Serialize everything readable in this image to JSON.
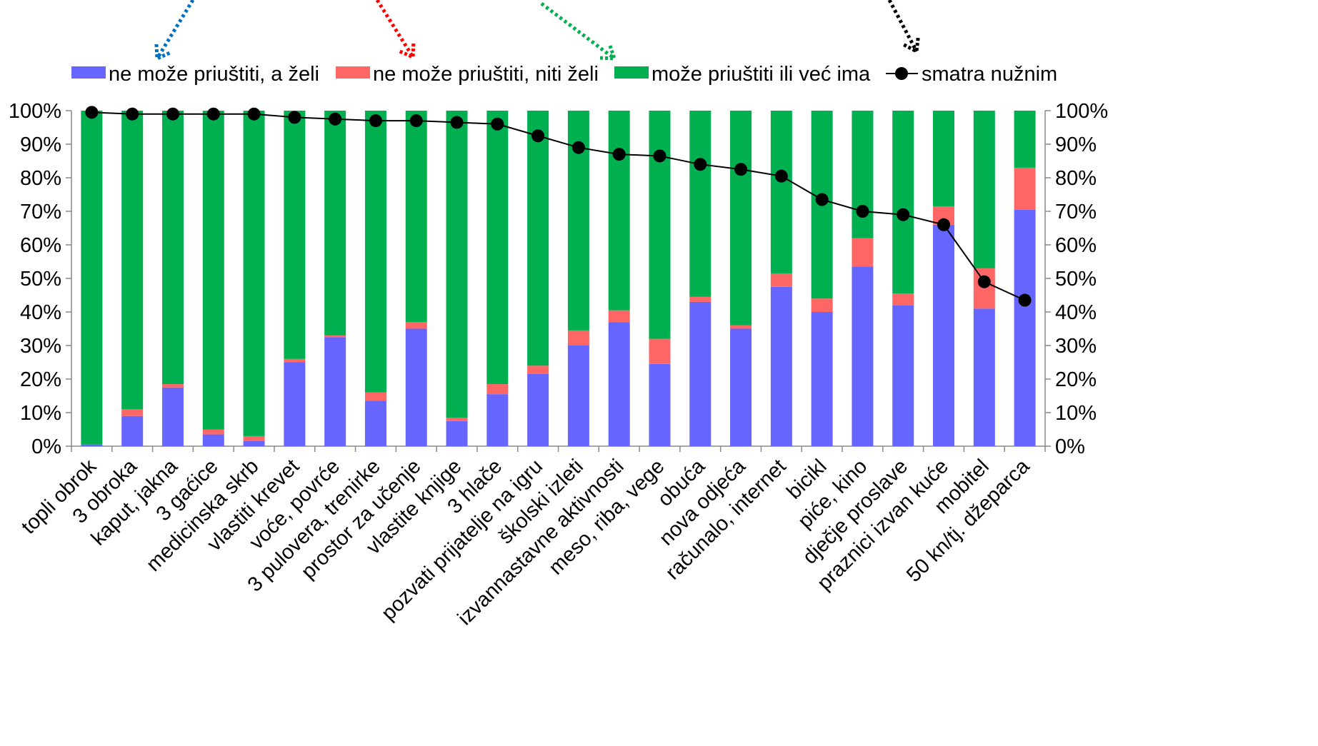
{
  "chart_data": {
    "type": "bar",
    "stacked": true,
    "categories": [
      "topli obrok",
      "3 obroka",
      "kaput, jakna",
      "3 gaćice",
      "medicinska skrb",
      "vlastiti krevet",
      "voće, povrće",
      "3 pulovera, trenirke",
      "prostor za učenje",
      "vlastite knjige",
      "3 hlače",
      "pozvati prijatelje na igru",
      "školski izleti",
      "izvannastavne aktivnosti",
      "meso, riba, vege",
      "obuća",
      "nova odjeća",
      "računalo, internet",
      "bicikl",
      "piće, kino",
      "dječje proslave",
      "praznici izvan kuće",
      "mobitel",
      "50 kn/tj. džeparca"
    ],
    "series": [
      {
        "name": "ne može priuštiti, a želi",
        "color": "#6666ff",
        "values": [
          0.5,
          9,
          17.5,
          3.5,
          1.5,
          25,
          32.5,
          13.5,
          35,
          7.5,
          15.5,
          21.5,
          30,
          37,
          24.5,
          43,
          35,
          47.5,
          40,
          53.5,
          42,
          66,
          41,
          70.5
        ]
      },
      {
        "name": "ne može priuštiti, niti želi",
        "color": "#ff6666",
        "values": [
          0,
          2,
          1,
          1.5,
          1.5,
          1,
          0.5,
          2.5,
          2,
          1,
          3,
          2.5,
          4.5,
          3.5,
          7.5,
          1.5,
          1,
          4,
          4,
          8.5,
          3.5,
          5.5,
          12,
          12.5
        ]
      },
      {
        "name": "može priuštiti ili već ima",
        "color": "#00b050",
        "values": [
          99.5,
          89,
          81.5,
          95,
          97,
          74,
          67,
          84,
          63,
          91.5,
          81.5,
          76,
          65.5,
          59.5,
          68,
          55.5,
          64,
          48.5,
          56,
          38,
          54.5,
          28.5,
          47,
          17
        ]
      }
    ],
    "line": {
      "name": "smatra nužnim",
      "color": "#000000",
      "values": [
        99.5,
        99,
        99,
        99,
        99,
        98,
        97.5,
        97,
        97,
        96.5,
        96,
        92.5,
        89,
        87,
        86.5,
        84,
        82.5,
        80.5,
        73.5,
        70,
        69,
        66,
        49,
        43.5
      ]
    },
    "ylim": [
      0,
      100
    ],
    "yticks": [
      "0%",
      "10%",
      "20%",
      "30%",
      "40%",
      "50%",
      "60%",
      "70%",
      "80%",
      "90%",
      "100%"
    ],
    "secondary_yticks": [
      "0%",
      "10%",
      "20%",
      "30%",
      "40%",
      "50%",
      "60%",
      "70%",
      "80%",
      "90%",
      "100%"
    ],
    "legend_position": "top",
    "arrow_colors": [
      "#0070c0",
      "#ff0000",
      "#00b050",
      "#000000"
    ],
    "title": "",
    "xlabel": "",
    "ylabel": ""
  }
}
